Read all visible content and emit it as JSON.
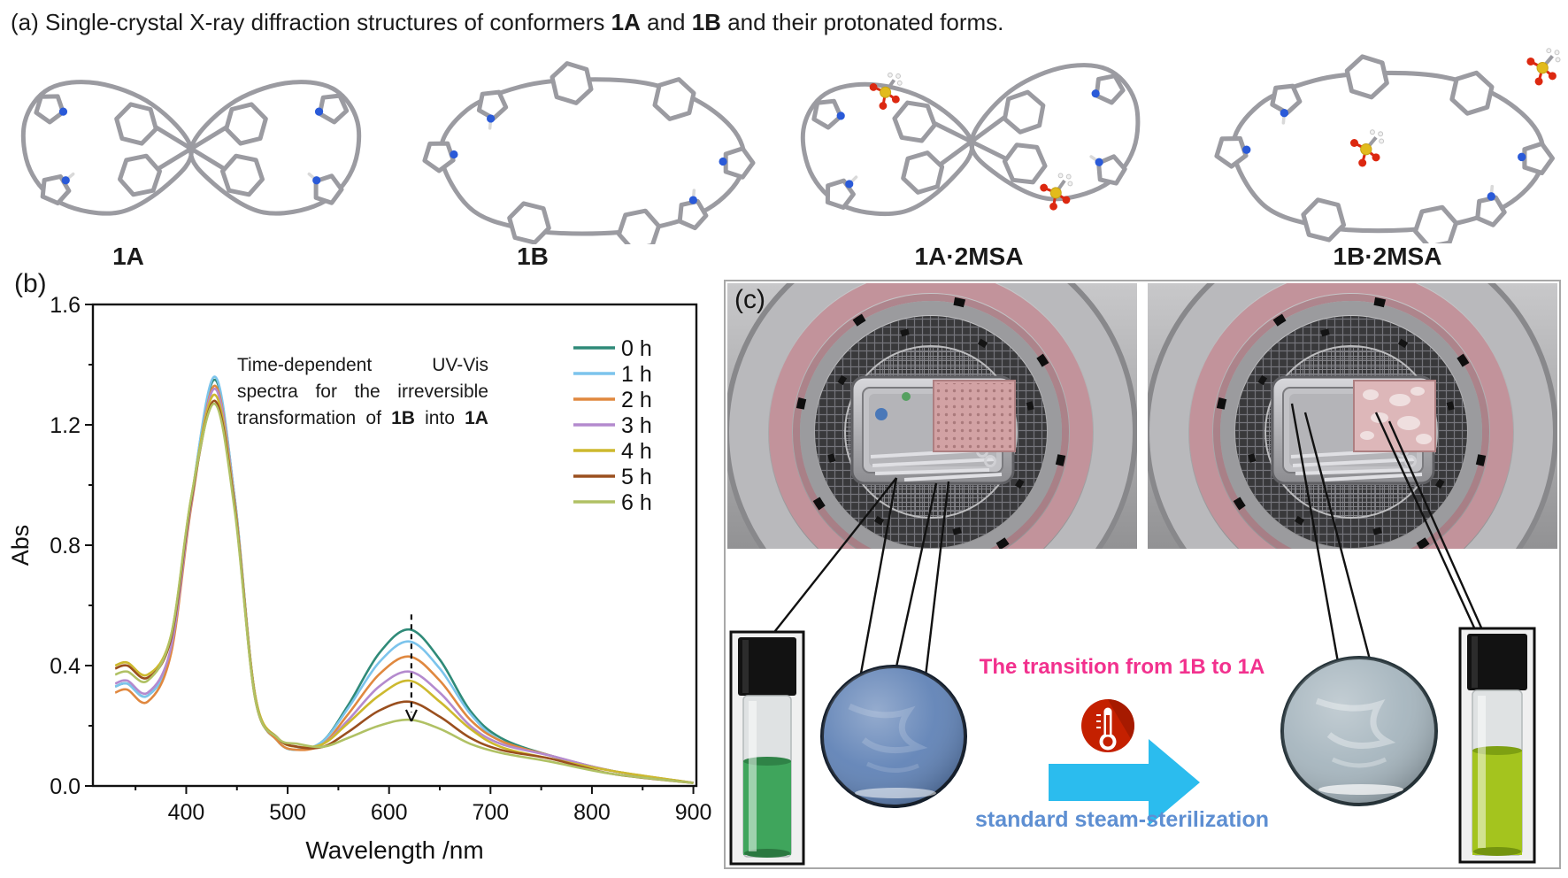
{
  "title": {
    "runs": [
      {
        "text": "(a) Single-crystal X-ray diffraction structures of conformers ",
        "bold": false
      },
      {
        "text": "1A",
        "bold": true
      },
      {
        "text": " and ",
        "bold": false
      },
      {
        "text": "1B",
        "bold": true
      },
      {
        "text": " and their protonated forms.",
        "bold": false
      }
    ]
  },
  "molecules": [
    {
      "label": "1A"
    },
    {
      "label": "1B"
    },
    {
      "label": "1A·2MSA"
    },
    {
      "label": "1B·2MSA"
    }
  ],
  "panel_b": {
    "label": "(b)",
    "annotation_lines": [
      [
        {
          "text": "Time-dependent",
          "bold": false
        },
        {
          "text": "UV-Vis",
          "bold": false
        }
      ],
      [
        {
          "text": "spectra",
          "bold": false
        },
        {
          "text": "for",
          "bold": false
        },
        {
          "text": "the",
          "bold": false
        },
        {
          "text": "irreversible",
          "bold": false
        }
      ],
      [
        {
          "text": "transformation",
          "bold": false
        },
        {
          "text": "of",
          "bold": false
        },
        {
          "text": "1B",
          "bold": true
        },
        {
          "text": "into",
          "bold": false
        },
        {
          "text": "1A",
          "bold": true
        }
      ]
    ]
  },
  "chart_data": {
    "type": "line",
    "title": "Time-dependent UV-Vis spectra for the irreversible transformation of 1B into 1A",
    "xlabel": "Wavelength /nm",
    "ylabel": "Abs",
    "xlim": [
      308,
      903
    ],
    "ylim": [
      0,
      1.6
    ],
    "xticks": [
      400,
      500,
      600,
      700,
      800,
      900
    ],
    "yticks": [
      0.0,
      0.4,
      0.8,
      1.2,
      1.6
    ],
    "x_minor_step": 50,
    "y_minor_step": 0.2,
    "grid": false,
    "legend_position": "top-right",
    "x": [
      330,
      342,
      362,
      385,
      405,
      428,
      448,
      468,
      490,
      510,
      535,
      560,
      590,
      620,
      650,
      680,
      710,
      760,
      820,
      900
    ],
    "series": [
      {
        "name": "0 h",
        "color": "#2f8a78",
        "values": [
          0.33,
          0.34,
          0.3,
          0.45,
          0.95,
          1.35,
          0.95,
          0.3,
          0.15,
          0.12,
          0.15,
          0.27,
          0.44,
          0.52,
          0.42,
          0.25,
          0.16,
          0.1,
          0.05,
          0.01
        ]
      },
      {
        "name": "1 h",
        "color": "#7cc4ec",
        "values": [
          0.33,
          0.34,
          0.3,
          0.45,
          0.95,
          1.36,
          0.95,
          0.3,
          0.15,
          0.12,
          0.15,
          0.26,
          0.41,
          0.48,
          0.39,
          0.24,
          0.15,
          0.1,
          0.05,
          0.01
        ]
      },
      {
        "name": "2 h",
        "color": "#e0883f",
        "values": [
          0.31,
          0.32,
          0.28,
          0.44,
          0.93,
          1.33,
          0.94,
          0.3,
          0.15,
          0.12,
          0.14,
          0.24,
          0.37,
          0.43,
          0.35,
          0.22,
          0.15,
          0.1,
          0.05,
          0.01
        ]
      },
      {
        "name": "3 h",
        "color": "#b48ace",
        "values": [
          0.34,
          0.35,
          0.31,
          0.46,
          0.94,
          1.32,
          0.94,
          0.3,
          0.16,
          0.13,
          0.14,
          0.22,
          0.33,
          0.38,
          0.31,
          0.2,
          0.14,
          0.1,
          0.05,
          0.01
        ]
      },
      {
        "name": "4 h",
        "color": "#cdb92e",
        "values": [
          0.4,
          0.41,
          0.37,
          0.5,
          0.96,
          1.3,
          0.93,
          0.3,
          0.16,
          0.13,
          0.14,
          0.21,
          0.3,
          0.35,
          0.28,
          0.19,
          0.13,
          0.09,
          0.05,
          0.01
        ]
      },
      {
        "name": "5 h",
        "color": "#9a4f1e",
        "values": [
          0.39,
          0.4,
          0.36,
          0.49,
          0.95,
          1.28,
          0.92,
          0.29,
          0.16,
          0.13,
          0.13,
          0.18,
          0.25,
          0.28,
          0.23,
          0.16,
          0.12,
          0.09,
          0.04,
          0.01
        ]
      },
      {
        "name": "6 h",
        "color": "#b0c164",
        "values": [
          0.37,
          0.38,
          0.35,
          0.5,
          0.96,
          1.27,
          0.91,
          0.29,
          0.16,
          0.14,
          0.13,
          0.16,
          0.2,
          0.22,
          0.19,
          0.14,
          0.11,
          0.08,
          0.04,
          0.01
        ]
      }
    ],
    "annotation_arrow": {
      "x": 622,
      "y_from": 0.57,
      "y_to": 0.215,
      "style": "dashed-down"
    }
  },
  "panel_c": {
    "label": "(c)",
    "transition_text": "The transition from 1B to 1A",
    "process_text": "standard steam-sterilization",
    "colors": {
      "transition_text": "#f2318e",
      "process_text": "#5e8fd2",
      "arrow": "#2bbcee",
      "thermometer": "#c42000",
      "disc_left": "#5c7fb4",
      "disc_right": "#a3b3bc",
      "vial_left_liquid": "#3fa55c",
      "vial_right_liquid": "#a4c41e",
      "gasket_pink": "#c2939b"
    }
  }
}
